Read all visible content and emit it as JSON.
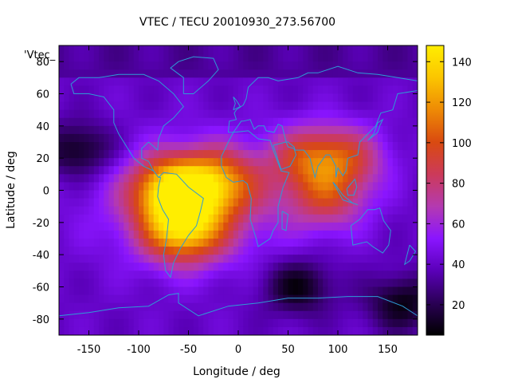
{
  "chart_data": {
    "type": "heatmap",
    "title": "VTEC / TECU 20010930_273.56700",
    "series_label": "'Vtec_",
    "xlabel": "Longitude / deg",
    "ylabel": "Latitude / deg",
    "xlim": [
      -180,
      180
    ],
    "ylim": [
      -90,
      90
    ],
    "xticks": [
      -150,
      -100,
      -50,
      0,
      50,
      100,
      150
    ],
    "yticks": [
      -80,
      -60,
      -40,
      -20,
      0,
      20,
      40,
      60,
      80
    ],
    "colorbar": {
      "range": [
        5,
        148
      ],
      "ticks": [
        20,
        40,
        60,
        80,
        100,
        120,
        140
      ],
      "palette": [
        "#000000",
        "#2a0055",
        "#5a00b8",
        "#8a15ff",
        "#b43ab0",
        "#cc3a5a",
        "#d94a10",
        "#ee8a05",
        "#fbc500",
        "#ffee00"
      ]
    },
    "grid": false,
    "coastline_color": "#2e9bd6",
    "peaks": [
      {
        "lon": -65,
        "lat": 0,
        "value": 140
      },
      {
        "lon": -55,
        "lat": -25,
        "value": 130
      },
      {
        "lon": 70,
        "lat": 20,
        "value": 100
      },
      {
        "lon": 110,
        "lat": 20,
        "value": 95
      },
      {
        "lon": 90,
        "lat": -5,
        "value": 95
      },
      {
        "lon": -20,
        "lat": 5,
        "value": 110
      }
    ],
    "troughs": [
      {
        "lon": -160,
        "lat": 25,
        "value": 8
      },
      {
        "lon": 60,
        "lat": -60,
        "value": 10
      },
      {
        "lon": 165,
        "lat": -70,
        "value": 10
      }
    ]
  }
}
